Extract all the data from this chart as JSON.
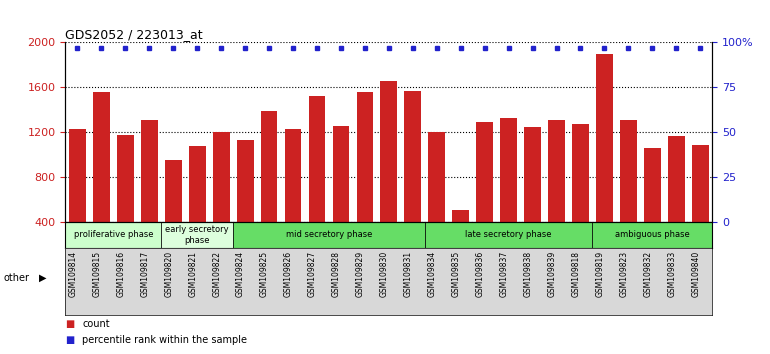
{
  "title": "GDS2052 / 223013_at",
  "samples": [
    "GSM109814",
    "GSM109815",
    "GSM109816",
    "GSM109817",
    "GSM109820",
    "GSM109821",
    "GSM109822",
    "GSM109824",
    "GSM109825",
    "GSM109826",
    "GSM109827",
    "GSM109828",
    "GSM109829",
    "GSM109830",
    "GSM109831",
    "GSM109834",
    "GSM109835",
    "GSM109836",
    "GSM109837",
    "GSM109838",
    "GSM109839",
    "GSM109818",
    "GSM109819",
    "GSM109823",
    "GSM109832",
    "GSM109833",
    "GSM109840"
  ],
  "counts": [
    1230,
    1560,
    1180,
    1310,
    950,
    1080,
    1200,
    1130,
    1390,
    1230,
    1520,
    1260,
    1560,
    1660,
    1570,
    1200,
    510,
    1290,
    1330,
    1250,
    1310,
    1270,
    1900,
    1310,
    1060,
    1170,
    1090
  ],
  "percentile_rank": 97,
  "ylim": [
    400,
    2000
  ],
  "yticks": [
    400,
    800,
    1200,
    1600,
    2000
  ],
  "right_yticks": [
    0,
    25,
    50,
    75,
    100
  ],
  "right_ylim": [
    0,
    100
  ],
  "bar_color": "#cc2222",
  "dot_color": "#2222cc",
  "phases": [
    {
      "label": "proliferative phase",
      "start": 0,
      "end": 4,
      "color": "#ccffcc"
    },
    {
      "label": "early secretory\nphase",
      "start": 4,
      "end": 7,
      "color": "#ddffdd"
    },
    {
      "label": "mid secretory phase",
      "start": 7,
      "end": 15,
      "color": "#66dd66"
    },
    {
      "label": "late secretory phase",
      "start": 15,
      "end": 22,
      "color": "#66dd66"
    },
    {
      "label": "ambiguous phase",
      "start": 22,
      "end": 27,
      "color": "#66dd66"
    }
  ],
  "other_label": "other",
  "legend_count_label": "count",
  "legend_pct_label": "percentile rank within the sample",
  "bg_color": "#ffffff",
  "tick_area_color": "#d8d8d8"
}
